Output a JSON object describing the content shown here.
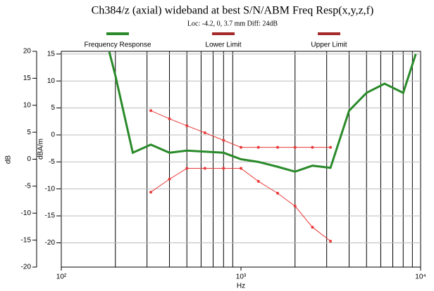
{
  "chart_data": {
    "type": "line",
    "title": "Ch384/z (axial) wideband at best S/N/ABM Freq Resp(x,y,z,f)",
    "subtitle": "Loc: -4.2, 0, 3.7 mm Diff: 24dB",
    "xlabel": "Hz",
    "ylabel": "dB",
    "y2label": "dBA/m",
    "xscale": "log",
    "xlim": [
      100,
      10000
    ],
    "xticks": [
      {
        "value": 100,
        "label": "10²"
      },
      {
        "value": 1000,
        "label": "10³"
      },
      {
        "value": 10000,
        "label": "10⁴"
      }
    ],
    "xminor_ticks": [
      200,
      300,
      400,
      500,
      600,
      700,
      800,
      900,
      2000,
      3000,
      4000,
      5000,
      6000,
      7000,
      8000,
      9000
    ],
    "ylim": [
      -20,
      20
    ],
    "yticks": [
      -20,
      -15,
      -10,
      -5,
      0,
      5,
      10,
      15,
      20
    ],
    "y2lim": [
      -24.5,
      15.5
    ],
    "y2ticks": [
      -20,
      -15,
      -10,
      -5,
      0,
      5,
      10,
      15
    ],
    "grid": true,
    "legend": "top",
    "series": [
      {
        "name": "Frequency Response",
        "color": "#2a8a2a",
        "width": 3,
        "markers": false,
        "axis": "y2",
        "x": [
          185,
          200,
          250,
          315,
          400,
          500,
          630,
          800,
          1000,
          1250,
          1600,
          2000,
          2500,
          3150,
          4000,
          5000,
          6300,
          8000,
          9400
        ],
        "values": [
          15.4,
          11,
          -3.3,
          -1.8,
          -3.3,
          -2.9,
          -3.1,
          -3.3,
          -4.5,
          -5,
          -5.9,
          -6.8,
          -5.7,
          -6.1,
          4.5,
          7.8,
          9.5,
          7.8,
          15
        ]
      },
      {
        "name": "Lower Limit",
        "color": "#e83a3a",
        "width": 1,
        "markers": true,
        "axis": "y2",
        "x": [
          315,
          400,
          500,
          630,
          800,
          1000,
          1250,
          1600,
          2000,
          2500,
          3150
        ],
        "values": [
          -10.6,
          -8.2,
          -6.2,
          -6.2,
          -6.2,
          -6.2,
          -8.6,
          -10.8,
          -13.2,
          -17.1,
          -19.7
        ]
      },
      {
        "name": "Upper Limit",
        "color": "#e83a3a",
        "width": 1,
        "markers": true,
        "axis": "y2",
        "x": [
          315,
          400,
          500,
          630,
          800,
          1000,
          1250,
          1600,
          2000,
          2500,
          3150
        ],
        "values": [
          4.5,
          3,
          1.7,
          0.4,
          -1,
          -2.3,
          -2.3,
          -2.3,
          -2.3,
          -2.3,
          -2.3
        ]
      }
    ]
  }
}
